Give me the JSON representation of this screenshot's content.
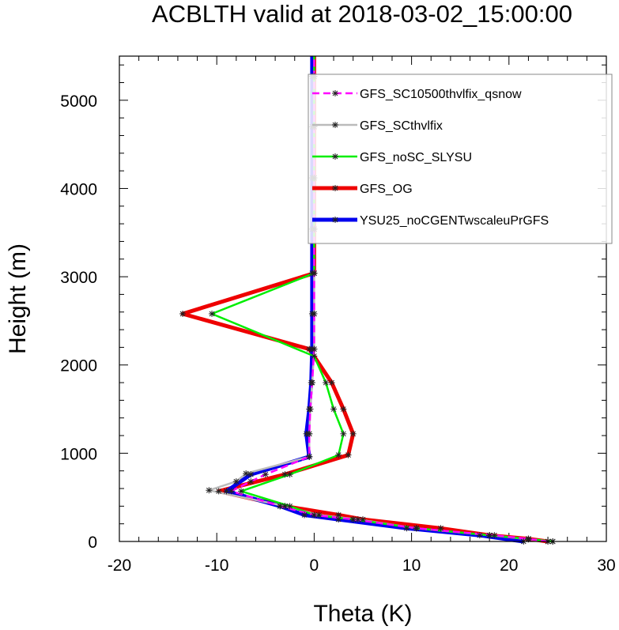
{
  "chart_data": {
    "type": "line",
    "title": "ACBLTH valid at 2018-03-02_15:00:00",
    "xlabel": "Theta (K)",
    "ylabel": "Height (m)",
    "xlim": [
      -20,
      30
    ],
    "ylim": [
      0,
      5500
    ],
    "xticks": [
      "-20",
      "-10",
      "0",
      "10",
      "20",
      "30"
    ],
    "yticks": [
      "0",
      "1000",
      "2000",
      "3000",
      "4000",
      "5000"
    ],
    "grid": false,
    "legend_position": "top-right",
    "series": [
      {
        "name": "GFS_SC10500thvlfix_qsnow",
        "color": "#ff00ff",
        "style": "dashed",
        "points": [
          [
            24.0,
            0
          ],
          [
            22.0,
            30
          ],
          [
            18.5,
            70
          ],
          [
            10.5,
            150
          ],
          [
            4.0,
            250
          ],
          [
            0.0,
            300
          ],
          [
            -3.5,
            400
          ],
          [
            -8.5,
            570
          ],
          [
            -6.5,
            680
          ],
          [
            -5.0,
            760
          ],
          [
            -0.5,
            960
          ],
          [
            -0.5,
            1220
          ],
          [
            -0.4,
            1500
          ],
          [
            -0.2,
            1800
          ],
          [
            0.0,
            2180
          ],
          [
            0.0,
            2580
          ],
          [
            0.0,
            3040
          ],
          [
            0.0,
            3540
          ],
          [
            0.0,
            4120
          ],
          [
            0.0,
            4700
          ],
          [
            0.0,
            5270
          ],
          [
            0.0,
            5500
          ]
        ]
      },
      {
        "name": "GFS_SCthvlfix",
        "color": "#bbbbbb",
        "style": "solid",
        "points": [
          [
            24.5,
            0
          ],
          [
            22.0,
            25
          ],
          [
            18.0,
            70
          ],
          [
            10.5,
            150
          ],
          [
            4.5,
            250
          ],
          [
            0.5,
            300
          ],
          [
            -3.0,
            400
          ],
          [
            -10.8,
            580
          ],
          [
            -8.0,
            680
          ],
          [
            -7.0,
            770
          ],
          [
            -0.5,
            960
          ],
          [
            -0.5,
            1220
          ],
          [
            -0.4,
            1500
          ],
          [
            -0.2,
            1800
          ],
          [
            0.0,
            2180
          ],
          [
            0.0,
            2580
          ],
          [
            0.0,
            3040
          ],
          [
            0.0,
            3540
          ],
          [
            0.0,
            4120
          ],
          [
            0.0,
            4700
          ],
          [
            0.0,
            5270
          ],
          [
            0.0,
            5500
          ]
        ]
      },
      {
        "name": "GFS_noSC_SLYSU",
        "color": "#00ee00",
        "style": "solid",
        "points": [
          [
            24.5,
            0
          ],
          [
            22.0,
            30
          ],
          [
            18.0,
            70
          ],
          [
            10.5,
            150
          ],
          [
            4.0,
            250
          ],
          [
            0.0,
            300
          ],
          [
            -2.5,
            400
          ],
          [
            -7.5,
            570
          ],
          [
            -2.5,
            760
          ],
          [
            2.5,
            980
          ],
          [
            3.0,
            1220
          ],
          [
            2.0,
            1500
          ],
          [
            1.2,
            1800
          ],
          [
            0.0,
            2100
          ],
          [
            -10.5,
            2580
          ],
          [
            0.0,
            3040
          ],
          [
            0.0,
            3540
          ],
          [
            0.0,
            4120
          ],
          [
            0.0,
            4700
          ],
          [
            0.0,
            5270
          ],
          [
            0.0,
            5500
          ]
        ]
      },
      {
        "name": "GFS_OG",
        "color": "#ee0000",
        "style": "solid",
        "points": [
          [
            24.0,
            0
          ],
          [
            22.0,
            30
          ],
          [
            18.0,
            70
          ],
          [
            13.0,
            150
          ],
          [
            5.0,
            250
          ],
          [
            2.5,
            300
          ],
          [
            -3.0,
            400
          ],
          [
            -9.8,
            570
          ],
          [
            -3.0,
            760
          ],
          [
            3.5,
            980
          ],
          [
            4.0,
            1220
          ],
          [
            3.0,
            1500
          ],
          [
            1.8,
            1800
          ],
          [
            -0.5,
            2180
          ],
          [
            -13.5,
            2580
          ],
          [
            0.0,
            3040
          ],
          [
            0.0,
            3540
          ],
          [
            0.0,
            4120
          ],
          [
            0.0,
            4700
          ],
          [
            0.0,
            5270
          ],
          [
            0.0,
            5500
          ]
        ]
      },
      {
        "name": "YSU25_noCGENTwscaleuPrGFS",
        "color": "#0000ee",
        "style": "solid",
        "points": [
          [
            21.5,
            0
          ],
          [
            17.0,
            70
          ],
          [
            9.5,
            150
          ],
          [
            2.5,
            250
          ],
          [
            -1.0,
            300
          ],
          [
            -3.5,
            400
          ],
          [
            -9.0,
            570
          ],
          [
            -6.5,
            760
          ],
          [
            -0.5,
            960
          ],
          [
            -0.8,
            1220
          ],
          [
            -0.5,
            1500
          ],
          [
            -0.3,
            1800
          ],
          [
            -0.2,
            2180
          ],
          [
            -0.2,
            2580
          ],
          [
            -0.2,
            3040
          ],
          [
            -0.2,
            3540
          ],
          [
            -0.2,
            4120
          ],
          [
            -0.2,
            4700
          ],
          [
            -0.2,
            5270
          ],
          [
            -0.2,
            5500
          ]
        ]
      }
    ]
  }
}
